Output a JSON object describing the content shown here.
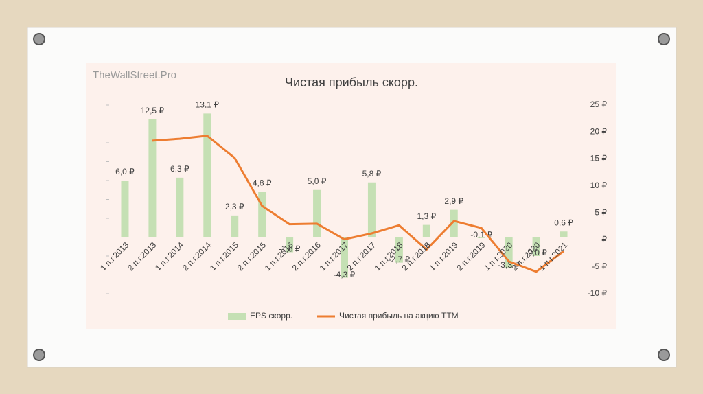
{
  "chart_data": {
    "type": "bar_line",
    "watermark": "TheWallStreet.Pro",
    "title": "Чистая прибыль скорр.",
    "categories": [
      "1 п.г.2013",
      "2 п.г.2013",
      "1 п.г.2014",
      "2 п.г.2014",
      "1 п.г.2015",
      "2 п.г.2015",
      "1 п.г.2016",
      "2 п.г.2016",
      "1 п.г.2017",
      "2 п.г.2017",
      "1 п.г.2018",
      "2 п.г.2018",
      "1 п.г.2019",
      "2 п.г.2019",
      "1 п.г.2020",
      "2 п.г.2020",
      "1 п.г.2021"
    ],
    "series": [
      {
        "name": "EPS скорр.",
        "color": "#c5e0b4",
        "kind": "bar",
        "values": [
          6.0,
          12.5,
          6.3,
          13.1,
          2.3,
          4.8,
          -1.6,
          5.0,
          -4.3,
          5.8,
          -2.7,
          1.3,
          2.9,
          -0.1,
          -3.3,
          -2.0,
          0.6
        ],
        "value_labels": [
          "6,0 ₽",
          "12,5 ₽",
          "6,3 ₽",
          "13,1 ₽",
          "2,3 ₽",
          "4,8 ₽",
          "-1,6 ₽",
          "5,0 ₽",
          "-4,3 ₽",
          "5,8 ₽",
          "-2,7 ₽",
          "1,3 ₽",
          "2,9 ₽",
          "-0,1 ₽",
          "-3,3 ₽",
          "-2,0 ₽",
          "0,6 ₽"
        ]
      },
      {
        "name": "Чистая прибыль  на акцию TTM",
        "color": "#ed7d31",
        "kind": "line",
        "axis": "y2",
        "values": [
          null,
          18.4,
          18.75,
          19.3,
          15.2,
          6.3,
          2.9,
          3.0,
          0.1,
          1.2,
          2.7,
          -1.8,
          3.5,
          2.2,
          -4.0,
          -5.9,
          -2.1
        ]
      }
    ],
    "ylim": [
      -6,
      14
    ],
    "yticks": [
      -6,
      -4,
      -2,
      0,
      2,
      4,
      6,
      8,
      10,
      12,
      14
    ],
    "y2lim": [
      -10,
      25
    ],
    "y2ticks": [
      {
        "value": -10,
        "label": "-10 ₽"
      },
      {
        "value": -5,
        "label": "-5 ₽"
      },
      {
        "value": 0,
        "label": "-  ₽"
      },
      {
        "value": 5,
        "label": "5 ₽"
      },
      {
        "value": 10,
        "label": "10 ₽"
      },
      {
        "value": 15,
        "label": "15 ₽"
      },
      {
        "value": 20,
        "label": "20 ₽"
      },
      {
        "value": 25,
        "label": "25 ₽"
      }
    ],
    "legend": "bottom"
  }
}
